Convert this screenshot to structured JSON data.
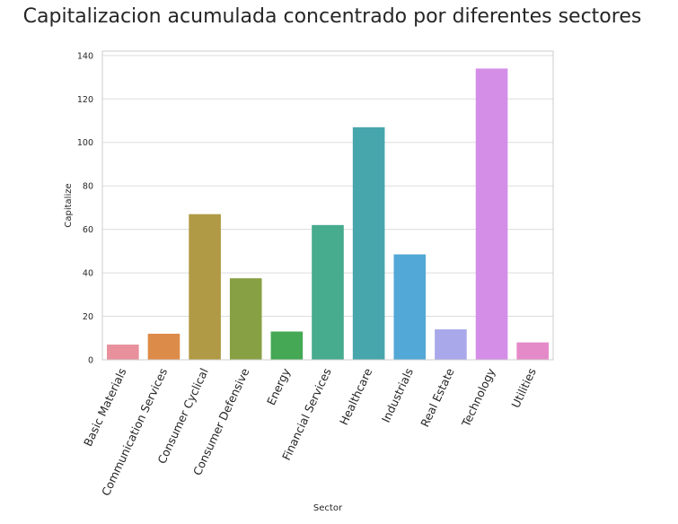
{
  "chart_data": {
    "type": "bar",
    "title": "Capitalizacion acumulada concentrado por diferentes sectores",
    "xlabel": "Sector",
    "ylabel": "Capitalize",
    "ylim": [
      0,
      142
    ],
    "yticks": [
      0,
      20,
      40,
      60,
      80,
      100,
      120,
      140
    ],
    "grid": true,
    "categories": [
      "Basic Materials",
      "Communication Services",
      "Consumer Cyclical",
      "Consumer Defensive",
      "Energy",
      "Financial Services",
      "Healthcare",
      "Industrials",
      "Real Estate",
      "Technology",
      "Utilities"
    ],
    "values": [
      7,
      12,
      67,
      37.5,
      13,
      62,
      107,
      48.5,
      14,
      134,
      8
    ],
    "colors": [
      "#e8909b",
      "#dd8b48",
      "#b09a45",
      "#88a044",
      "#44a854",
      "#47ab8d",
      "#47a6ac",
      "#52a8d6",
      "#a8a8ea",
      "#d58ee8",
      "#e58ac8"
    ]
  }
}
